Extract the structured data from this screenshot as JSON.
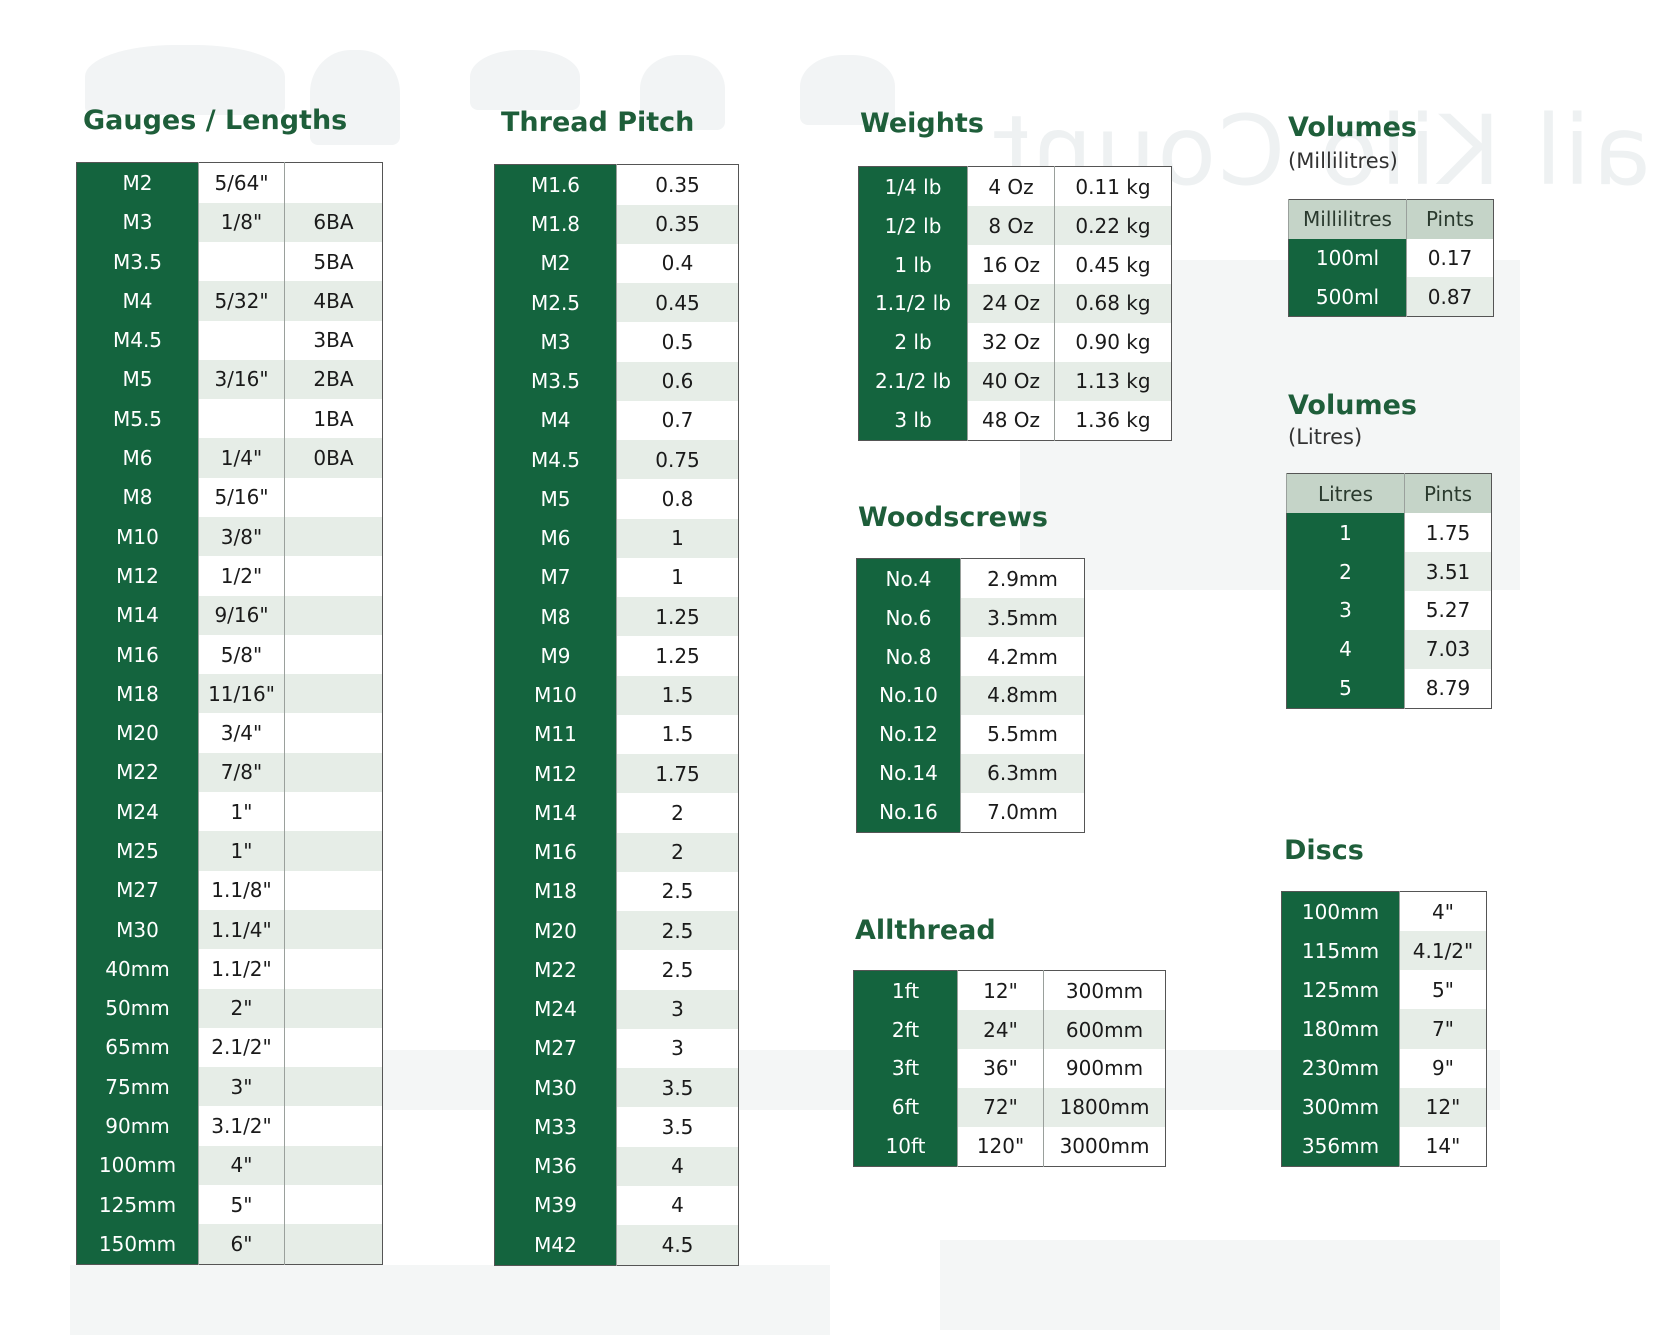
{
  "ghost": {
    "title": "Nail Kilo Count"
  },
  "gauges": {
    "title": "Gauges / Lengths",
    "rows": [
      [
        "M2",
        "5/64\"",
        ""
      ],
      [
        "M3",
        "1/8\"",
        "6BA"
      ],
      [
        "M3.5",
        "",
        "5BA"
      ],
      [
        "M4",
        "5/32\"",
        "4BA"
      ],
      [
        "M4.5",
        "",
        "3BA"
      ],
      [
        "M5",
        "3/16\"",
        "2BA"
      ],
      [
        "M5.5",
        "",
        "1BA"
      ],
      [
        "M6",
        "1/4\"",
        "0BA"
      ],
      [
        "M8",
        "5/16\"",
        ""
      ],
      [
        "M10",
        "3/8\"",
        ""
      ],
      [
        "M12",
        "1/2\"",
        ""
      ],
      [
        "M14",
        "9/16\"",
        ""
      ],
      [
        "M16",
        "5/8\"",
        ""
      ],
      [
        "M18",
        "11/16\"",
        ""
      ],
      [
        "M20",
        "3/4\"",
        ""
      ],
      [
        "M22",
        "7/8\"",
        ""
      ],
      [
        "M24",
        "1\"",
        ""
      ],
      [
        "M25",
        "1\"",
        ""
      ],
      [
        "M27",
        "1.1/8\"",
        ""
      ],
      [
        "M30",
        "1.1/4\"",
        ""
      ],
      [
        "40mm",
        "1.1/2\"",
        ""
      ],
      [
        "50mm",
        "2\"",
        ""
      ],
      [
        "65mm",
        "2.1/2\"",
        ""
      ],
      [
        "75mm",
        "3\"",
        ""
      ],
      [
        "90mm",
        "3.1/2\"",
        ""
      ],
      [
        "100mm",
        "4\"",
        ""
      ],
      [
        "125mm",
        "5\"",
        ""
      ],
      [
        "150mm",
        "6\"",
        ""
      ]
    ]
  },
  "pitch": {
    "title": "Thread Pitch",
    "rows": [
      [
        "M1.6",
        "0.35"
      ],
      [
        "M1.8",
        "0.35"
      ],
      [
        "M2",
        "0.4"
      ],
      [
        "M2.5",
        "0.45"
      ],
      [
        "M3",
        "0.5"
      ],
      [
        "M3.5",
        "0.6"
      ],
      [
        "M4",
        "0.7"
      ],
      [
        "M4.5",
        "0.75"
      ],
      [
        "M5",
        "0.8"
      ],
      [
        "M6",
        "1"
      ],
      [
        "M7",
        "1"
      ],
      [
        "M8",
        "1.25"
      ],
      [
        "M9",
        "1.25"
      ],
      [
        "M10",
        "1.5"
      ],
      [
        "M11",
        "1.5"
      ],
      [
        "M12",
        "1.75"
      ],
      [
        "M14",
        "2"
      ],
      [
        "M16",
        "2"
      ],
      [
        "M18",
        "2.5"
      ],
      [
        "M20",
        "2.5"
      ],
      [
        "M22",
        "2.5"
      ],
      [
        "M24",
        "3"
      ],
      [
        "M27",
        "3"
      ],
      [
        "M30",
        "3.5"
      ],
      [
        "M33",
        "3.5"
      ],
      [
        "M36",
        "4"
      ],
      [
        "M39",
        "4"
      ],
      [
        "M42",
        "4.5"
      ]
    ]
  },
  "weights": {
    "title": "Weights",
    "rows": [
      [
        "1/4 lb",
        "4 Oz",
        "0.11 kg"
      ],
      [
        "1/2 lb",
        "8 Oz",
        "0.22 kg"
      ],
      [
        "1 lb",
        "16 Oz",
        "0.45 kg"
      ],
      [
        "1.1/2 lb",
        "24 Oz",
        "0.68 kg"
      ],
      [
        "2 lb",
        "32 Oz",
        "0.90 kg"
      ],
      [
        "2.1/2 lb",
        "40 Oz",
        "1.13 kg"
      ],
      [
        "3 lb",
        "48 Oz",
        "1.36 kg"
      ]
    ]
  },
  "woodscrews": {
    "title": "Woodscrews",
    "rows": [
      [
        "No.4",
        "2.9mm"
      ],
      [
        "No.6",
        "3.5mm"
      ],
      [
        "No.8",
        "4.2mm"
      ],
      [
        "No.10",
        "4.8mm"
      ],
      [
        "No.12",
        "5.5mm"
      ],
      [
        "No.14",
        "6.3mm"
      ],
      [
        "No.16",
        "7.0mm"
      ]
    ]
  },
  "allthread": {
    "title": "Allthread",
    "rows": [
      [
        "1ft",
        "12\"",
        "300mm"
      ],
      [
        "2ft",
        "24\"",
        "600mm"
      ],
      [
        "3ft",
        "36\"",
        "900mm"
      ],
      [
        "6ft",
        "72\"",
        "1800mm"
      ],
      [
        "10ft",
        "120\"",
        "3000mm"
      ]
    ]
  },
  "volumes_ml": {
    "title": "Volumes",
    "subtitle": "(Millilitres)",
    "header": [
      "Millilitres",
      "Pints"
    ],
    "rows": [
      [
        "100ml",
        "0.17"
      ],
      [
        "500ml",
        "0.87"
      ]
    ]
  },
  "volumes_l": {
    "title": "Volumes",
    "subtitle": "(Litres)",
    "header": [
      "Litres",
      "Pints"
    ],
    "rows": [
      [
        "1",
        "1.75"
      ],
      [
        "2",
        "3.51"
      ],
      [
        "3",
        "5.27"
      ],
      [
        "4",
        "7.03"
      ],
      [
        "5",
        "8.79"
      ]
    ]
  },
  "discs": {
    "title": "Discs",
    "rows": [
      [
        "100mm",
        "4\""
      ],
      [
        "115mm",
        "4.1/2\""
      ],
      [
        "125mm",
        "5\""
      ],
      [
        "180mm",
        "7\""
      ],
      [
        "230mm",
        "9\""
      ],
      [
        "300mm",
        "12\""
      ],
      [
        "356mm",
        "14\""
      ]
    ]
  },
  "colors": {
    "green": "#14643e",
    "title_green": "#1e5e3a",
    "band": "#e6ede7"
  }
}
